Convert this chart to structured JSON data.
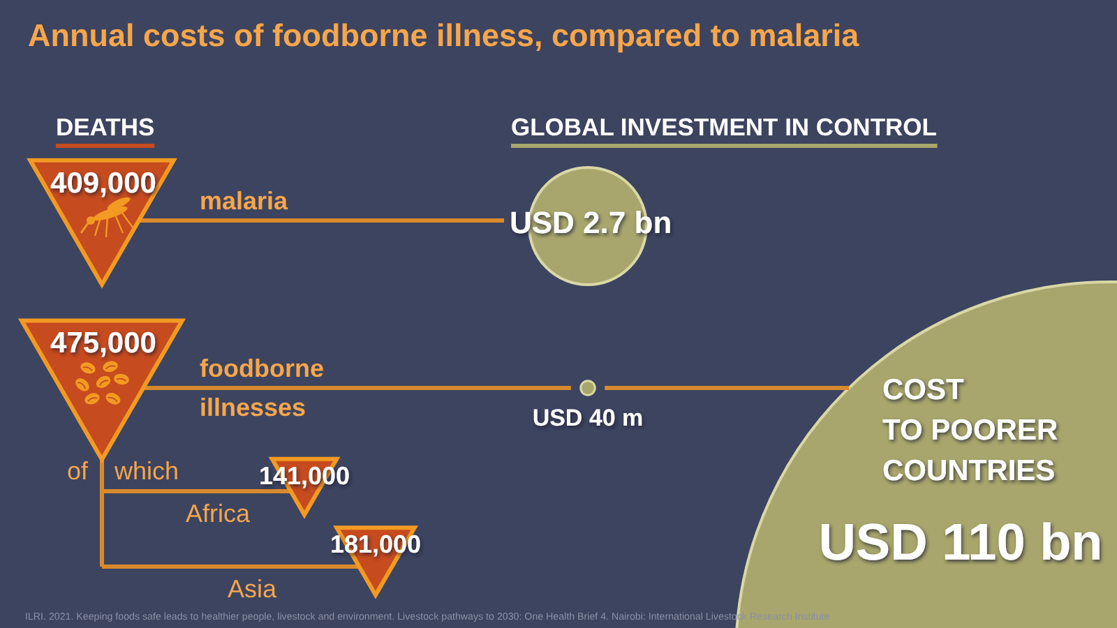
{
  "chart_data": {
    "type": "other",
    "title": "Annual costs of foodborne illness, compared to malaria",
    "categories": [
      "malaria",
      "foodborne illnesses",
      "Africa",
      "Asia"
    ],
    "series": [
      {
        "name": "DEATHS",
        "color": "#c64b1e",
        "values": [
          409000,
          475000,
          141000,
          181000
        ],
        "value_labels": [
          "409,000",
          "475,000",
          "141,000",
          "181,000"
        ]
      },
      {
        "name": "GLOBAL INVESTMENT IN CONTROL",
        "color": "#a8a66c",
        "values": [
          2700000000,
          40000000,
          null,
          null
        ],
        "value_labels": [
          "USD 2.7 bn",
          "USD 40 m",
          null,
          null
        ]
      },
      {
        "name": "COST TO POORER COUNTRIES",
        "color": "#a8a66c",
        "values": [
          null,
          110000000000,
          null,
          null
        ],
        "value_labels": [
          null,
          "USD 110 bn",
          null,
          null
        ]
      }
    ],
    "annotations": [
      "of which",
      "ILRI. 2021. Keeping foods safe leads to healthier people, livestock and environment. Livestock pathways to 2030: One Health Brief 4. Nairobi: International Livestock Research Institute"
    ]
  }
}
